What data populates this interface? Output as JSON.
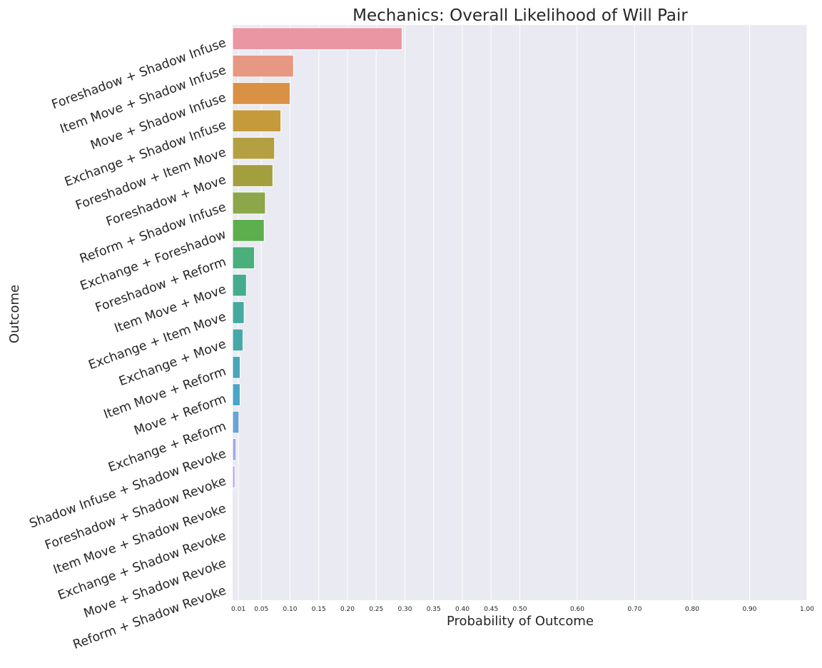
{
  "chart_data": {
    "type": "bar",
    "orientation": "horizontal",
    "title": "Mechanics: Overall Likelihood of Will Pair",
    "xlabel": "Probability of Outcome",
    "ylabel": "Outcome",
    "xlim": [
      0,
      1.0
    ],
    "xticks": [
      0.01,
      0.05,
      0.1,
      0.15,
      0.2,
      0.25,
      0.3,
      0.35,
      0.4,
      0.45,
      0.5,
      0.6,
      0.7,
      0.8,
      0.9,
      1.0
    ],
    "xtick_labels": [
      "0.01",
      "0.05",
      "0.10",
      "0.15",
      "0.20",
      "0.25",
      "0.30",
      "0.35",
      "0.40",
      "0.45",
      "0.50",
      "0.60",
      "0.70",
      "0.80",
      "0.90",
      "1.00"
    ],
    "grid": true,
    "categories": [
      "Foreshadow + Shadow Infuse",
      "Item Move + Shadow Infuse",
      "Move + Shadow Infuse",
      "Exchange + Shadow Infuse",
      "Foreshadow + Item Move",
      "Foreshadow + Move",
      "Reform + Shadow Infuse",
      "Exchange + Foreshadow",
      "Foreshadow + Reform",
      "Item Move + Move",
      "Exchange + Item Move",
      "Exchange + Move",
      "Item Move + Reform",
      "Move + Reform",
      "Exchange + Reform",
      "Shadow Infuse + Shadow Revoke",
      "Foreshadow + Shadow Revoke",
      "Item Move + Shadow Revoke",
      "Exchange + Shadow Revoke",
      "Move + Shadow Revoke",
      "Reform + Shadow Revoke"
    ],
    "values": [
      0.295,
      0.106,
      0.1,
      0.084,
      0.073,
      0.07,
      0.057,
      0.055,
      0.038,
      0.024,
      0.02,
      0.018,
      0.013,
      0.013,
      0.011,
      0.006,
      0.004,
      0.0,
      0.0,
      0.0,
      0.0
    ],
    "colors": [
      "#ea96a3",
      "#e79882",
      "#d99145",
      "#c59a3b",
      "#b4a042",
      "#a39f3e",
      "#8ca74a",
      "#5dae4d",
      "#4aaf7a",
      "#45ac8f",
      "#46a99f",
      "#47a8a9",
      "#48a6b7",
      "#4aa5c7",
      "#6aa3d7",
      "#a4a9e4",
      "#bfa1e3",
      "#d69fe0",
      "#e19ecd",
      "#e89eb8",
      "#ea9dac"
    ],
    "background": "#eaeaf2",
    "gridline_color": "#ffffff"
  }
}
